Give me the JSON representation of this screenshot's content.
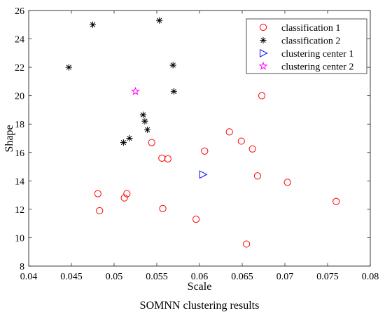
{
  "chart_data": {
    "type": "scatter",
    "title": "",
    "caption": "SOMNN clustering results",
    "xlabel": "Scale",
    "ylabel": "Shape",
    "xlim": [
      0.04,
      0.08
    ],
    "ylim": [
      8,
      26
    ],
    "grid": false,
    "legend_position": "top-right",
    "x_ticks": [
      "0.04",
      "0.045",
      "0.05",
      "0.055",
      "0.06",
      "0.065",
      "0.07",
      "0.075",
      "0.08"
    ],
    "y_ticks": [
      "8",
      "10",
      "12",
      "14",
      "16",
      "18",
      "20",
      "22",
      "24",
      "26"
    ],
    "series": [
      {
        "name": "classification 1",
        "marker": "circle",
        "color": "#ff0000",
        "points": [
          {
            "x": 0.0481,
            "y": 13.1
          },
          {
            "x": 0.0483,
            "y": 11.9
          },
          {
            "x": 0.0512,
            "y": 12.8
          },
          {
            "x": 0.0515,
            "y": 13.1
          },
          {
            "x": 0.0544,
            "y": 16.7
          },
          {
            "x": 0.0556,
            "y": 15.6
          },
          {
            "x": 0.0557,
            "y": 12.05
          },
          {
            "x": 0.0563,
            "y": 15.55
          },
          {
            "x": 0.0596,
            "y": 11.3
          },
          {
            "x": 0.0606,
            "y": 16.1
          },
          {
            "x": 0.0635,
            "y": 17.45
          },
          {
            "x": 0.0649,
            "y": 16.8
          },
          {
            "x": 0.0655,
            "y": 9.55
          },
          {
            "x": 0.0662,
            "y": 16.25
          },
          {
            "x": 0.0668,
            "y": 14.35
          },
          {
            "x": 0.0673,
            "y": 20.0
          },
          {
            "x": 0.0703,
            "y": 13.9
          },
          {
            "x": 0.076,
            "y": 12.55
          }
        ]
      },
      {
        "name": "classification 2",
        "marker": "asterisk",
        "color": "#000000",
        "points": [
          {
            "x": 0.0447,
            "y": 22.0
          },
          {
            "x": 0.0475,
            "y": 25.0
          },
          {
            "x": 0.0511,
            "y": 16.7
          },
          {
            "x": 0.0518,
            "y": 17.0
          },
          {
            "x": 0.0534,
            "y": 18.65
          },
          {
            "x": 0.0536,
            "y": 18.2
          },
          {
            "x": 0.0539,
            "y": 17.6
          },
          {
            "x": 0.0553,
            "y": 25.3
          },
          {
            "x": 0.0569,
            "y": 22.15
          },
          {
            "x": 0.057,
            "y": 20.3
          }
        ]
      },
      {
        "name": "clustering center 1",
        "marker": "triangle-right",
        "color": "#0000ff",
        "points": [
          {
            "x": 0.0604,
            "y": 14.45
          }
        ]
      },
      {
        "name": "clustering center 2",
        "marker": "pentagram",
        "color": "#ff00ff",
        "points": [
          {
            "x": 0.0525,
            "y": 20.3
          }
        ]
      }
    ]
  }
}
